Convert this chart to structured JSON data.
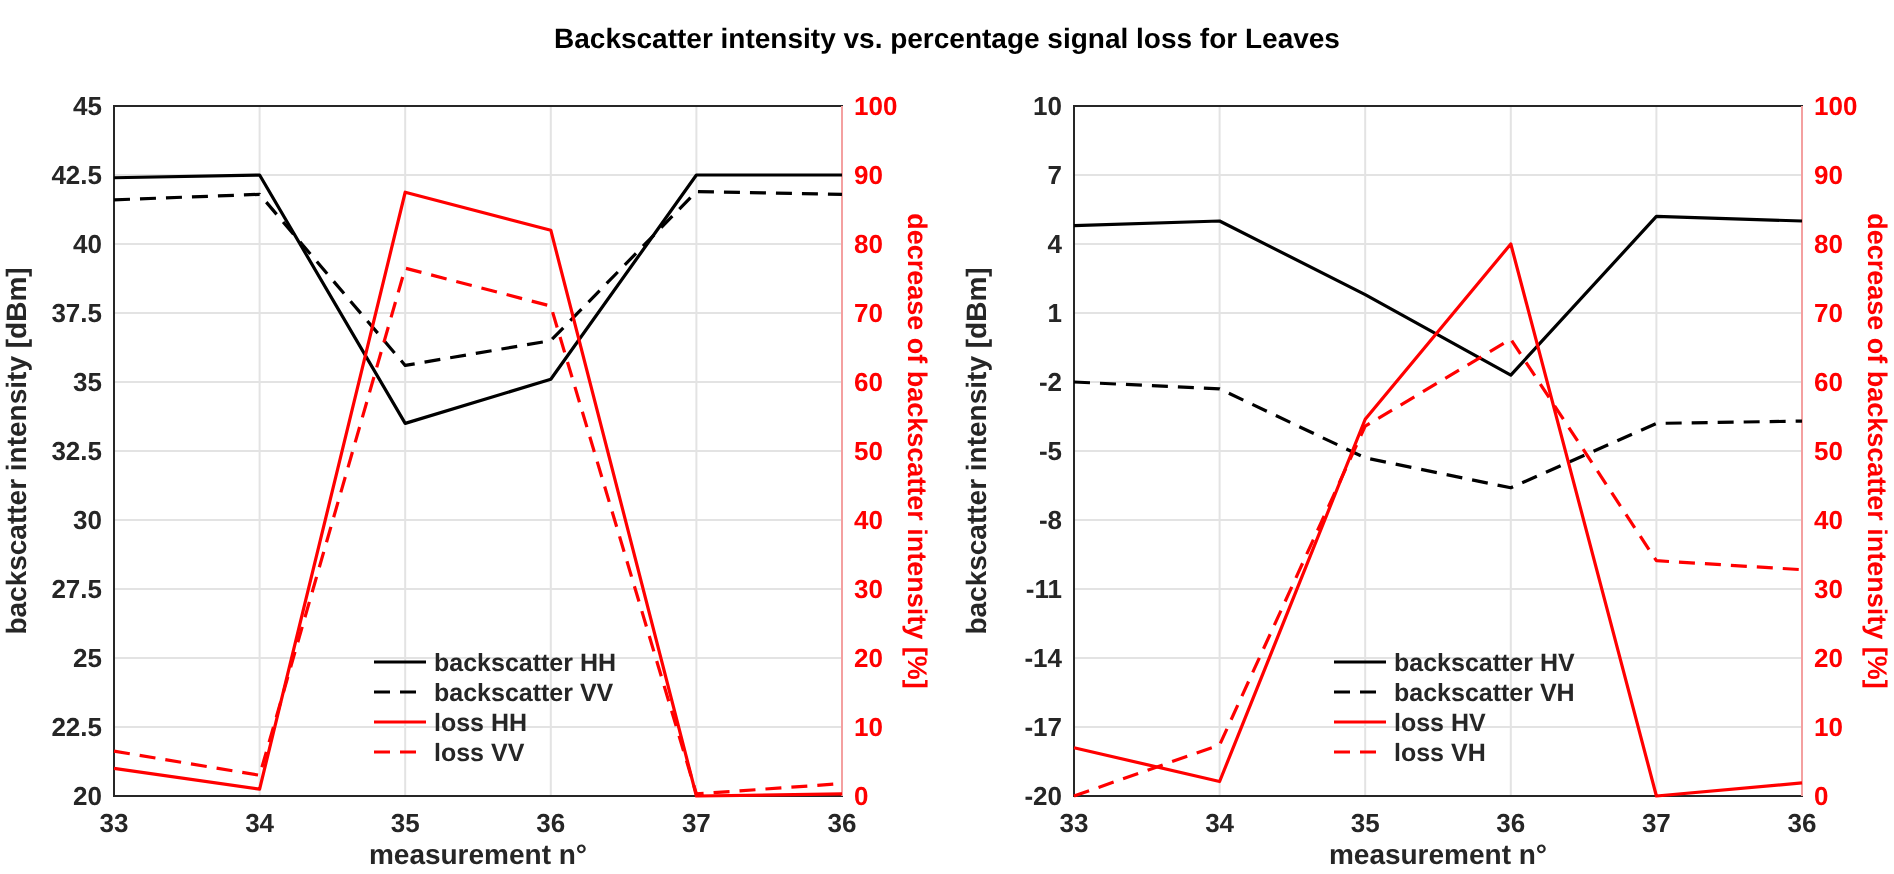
{
  "chart_data": [
    {
      "type": "line",
      "title": "Backscatter intensity vs. percentage signal loss for Leaves",
      "xlabel": "measurement n°",
      "ylabel": "backscatter intensity [dBm]",
      "y2label": "decrease of backscatter intensity [%]",
      "categories": [
        "33",
        "34",
        "35",
        "36",
        "37",
        "36"
      ],
      "ylim": [
        20,
        45
      ],
      "yticks": [
        20,
        22.5,
        25,
        27.5,
        30,
        32.5,
        35,
        37.5,
        40,
        42.5,
        45
      ],
      "y2lim": [
        0,
        100
      ],
      "y2ticks": [
        0,
        10,
        20,
        30,
        40,
        50,
        60,
        70,
        80,
        90,
        100
      ],
      "grid": true,
      "legend": "bottom",
      "series": [
        {
          "name": "backscatter HH",
          "color": "#000000",
          "line_style": "solid",
          "values": [
            42.4,
            42.5,
            33.5,
            35.1,
            42.5,
            42.5
          ]
        },
        {
          "name": "backscatter VV",
          "color": "#000000",
          "line_style": "dashed",
          "values": [
            41.6,
            41.8,
            35.6,
            36.5,
            41.9,
            41.8
          ]
        },
        {
          "name": "loss HH",
          "color": "#ff0000",
          "line_style": "solid",
          "axis": "y2",
          "values": [
            4,
            1,
            87.5,
            82,
            0,
            0.3
          ]
        },
        {
          "name": "loss VV",
          "color": "#ff0000",
          "line_style": "dashed",
          "axis": "y2",
          "values": [
            6.5,
            3,
            76.5,
            71,
            0.3,
            1.8
          ]
        }
      ]
    },
    {
      "type": "line",
      "xlabel": "measurement n°",
      "ylabel": "backscatter intensity [dBm]",
      "y2label": "decrease of backscatter intensity [%]",
      "categories": [
        "33",
        "34",
        "35",
        "36",
        "37",
        "36"
      ],
      "ylim": [
        -20,
        10
      ],
      "yticks": [
        -20,
        -17,
        -14,
        -11,
        -8,
        -5,
        -2,
        1,
        4,
        7,
        10
      ],
      "y2lim": [
        0,
        100
      ],
      "y2ticks": [
        0,
        10,
        20,
        30,
        40,
        50,
        60,
        70,
        80,
        90,
        100
      ],
      "grid": true,
      "legend": "bottom",
      "series": [
        {
          "name": "backscatter HV",
          "color": "#000000",
          "line_style": "solid",
          "values": [
            4.8,
            5.0,
            1.8,
            -1.7,
            5.2,
            5.0
          ]
        },
        {
          "name": "backscatter VH",
          "color": "#000000",
          "line_style": "dashed",
          "values": [
            -2,
            -2.3,
            -5.3,
            -6.6,
            -3.8,
            -3.7
          ]
        },
        {
          "name": "loss HV",
          "color": "#ff0000",
          "line_style": "solid",
          "axis": "y2",
          "values": [
            7,
            2.1,
            54.6,
            80,
            0,
            1.9
          ]
        },
        {
          "name": "loss VH",
          "color": "#ff0000",
          "line_style": "dashed",
          "axis": "y2",
          "values": [
            0,
            7.4,
            53.6,
            66.2,
            34.1,
            32.8
          ]
        }
      ]
    }
  ]
}
